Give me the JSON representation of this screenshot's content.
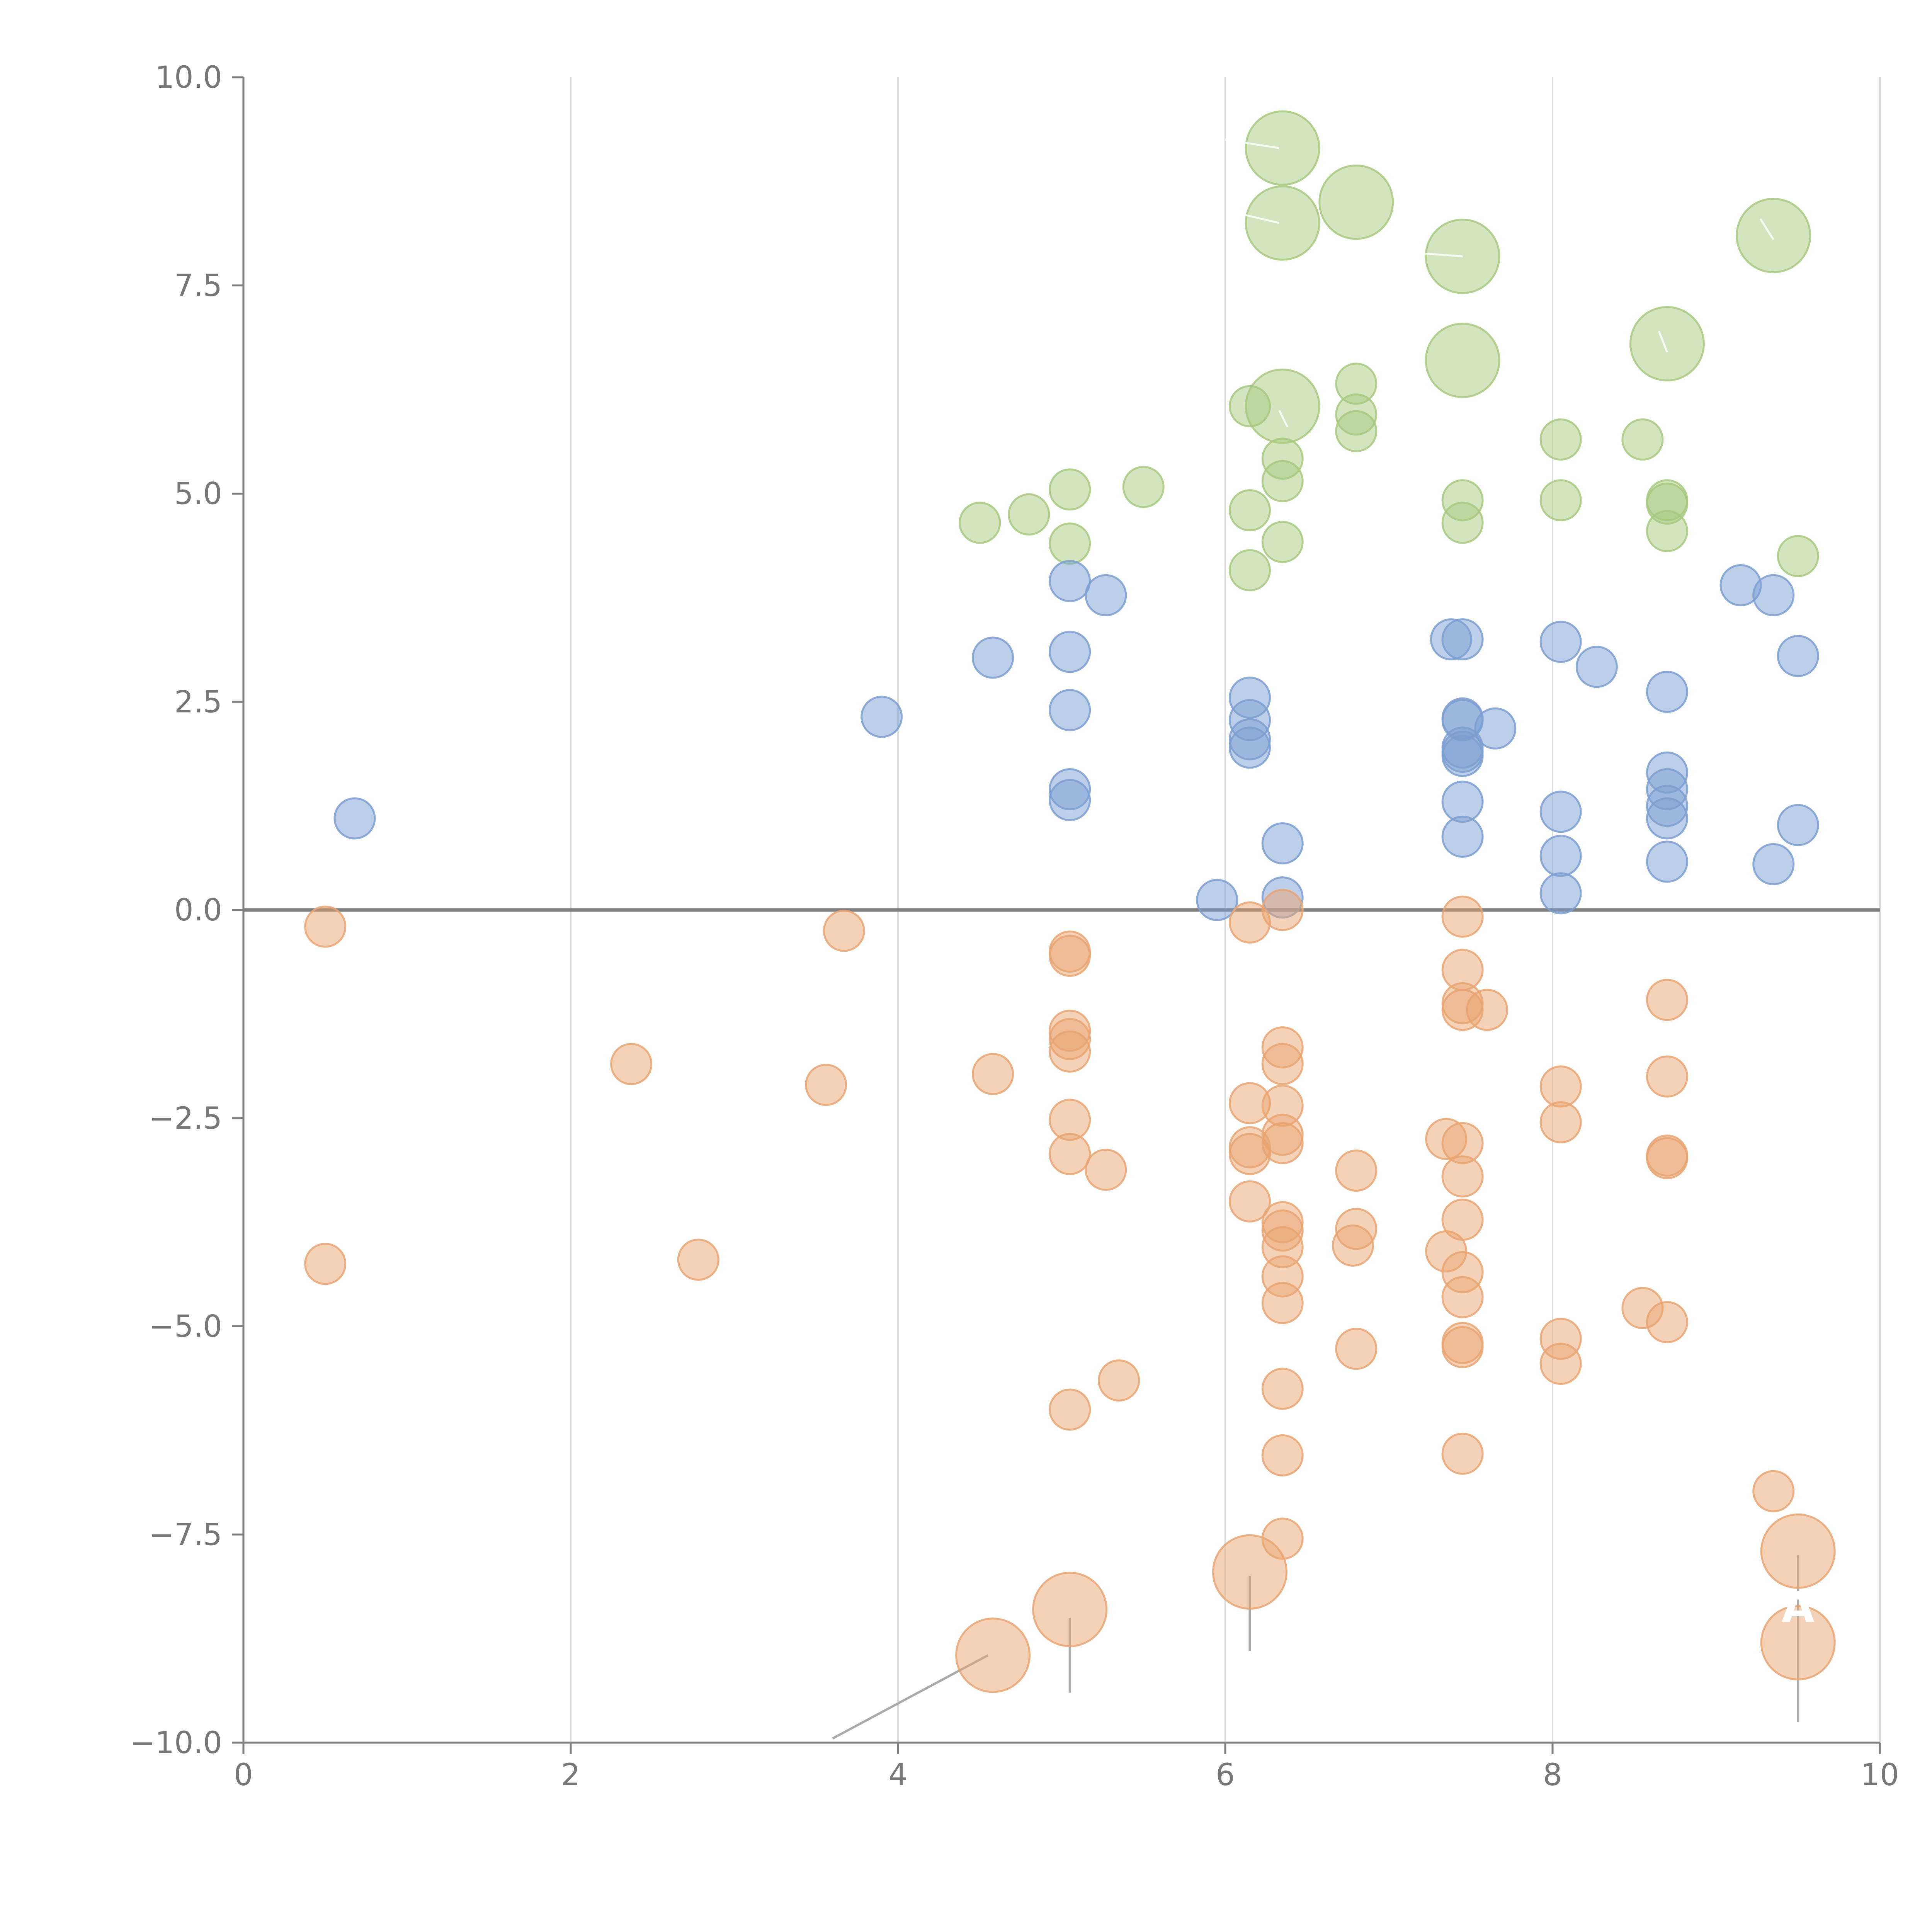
{
  "chart_data": {
    "type": "scatter",
    "title": "",
    "xlabel": "",
    "ylabel": "",
    "xlim": [
      0,
      10
    ],
    "ylim": [
      -10,
      10
    ],
    "x_ticks": [
      0,
      2,
      4,
      6,
      8,
      10
    ],
    "y_ticks": [
      -10,
      -7.5,
      -5,
      -2.5,
      0,
      2.5,
      5,
      7.5,
      10
    ],
    "x_tick_labels": [
      "0",
      "2",
      "4",
      "6",
      "8",
      "10"
    ],
    "y_tick_labels": [
      "−10.0",
      "−7.5",
      "−5.0",
      "−2.5",
      "0.0",
      "2.5",
      "5.0",
      "7.5",
      "10.0"
    ],
    "grid": "vertical",
    "zero_line": true,
    "colors": {
      "green": "#a8c97f",
      "blue": "#7b9fd1",
      "orange": "#e9a572",
      "axis": "#7f7f7f",
      "grid": "#dddddd",
      "leader": "#aaaaaa"
    },
    "series": [
      {
        "color": "green",
        "points": [
          [
            4.5,
            4.65
          ],
          [
            4.8,
            4.75
          ],
          [
            5.05,
            5.05
          ],
          [
            5.05,
            4.4
          ],
          [
            5.5,
            5.08
          ],
          [
            6.15,
            6.05
          ],
          [
            6.15,
            4.8
          ],
          [
            6.15,
            4.08
          ],
          [
            6.35,
            5.42
          ],
          [
            6.35,
            5.15
          ],
          [
            6.35,
            4.42
          ],
          [
            6.8,
            6.32
          ],
          [
            6.8,
            5.95
          ],
          [
            6.8,
            5.75
          ],
          [
            7.45,
            4.92
          ],
          [
            7.45,
            4.65
          ],
          [
            8.05,
            5.65
          ],
          [
            8.05,
            4.92
          ],
          [
            8.55,
            5.65
          ],
          [
            8.7,
            4.92
          ],
          [
            8.7,
            4.88
          ],
          [
            8.7,
            4.55
          ],
          [
            9.5,
            4.25
          ]
        ],
        "big_points": [
          [
            6.35,
            9.15
          ],
          [
            6.35,
            8.25
          ],
          [
            6.8,
            8.5
          ],
          [
            7.45,
            7.85
          ],
          [
            9.35,
            8.1
          ],
          [
            7.45,
            6.6
          ],
          [
            8.7,
            6.8
          ],
          [
            6.35,
            6.05
          ]
        ]
      },
      {
        "color": "blue",
        "points": [
          [
            0.68,
            1.1
          ],
          [
            3.9,
            2.32
          ],
          [
            4.58,
            3.03
          ],
          [
            5.05,
            3.95
          ],
          [
            5.05,
            3.1
          ],
          [
            5.05,
            2.4
          ],
          [
            5.05,
            1.45
          ],
          [
            5.05,
            1.32
          ],
          [
            5.27,
            3.78
          ],
          [
            5.95,
            0.12
          ],
          [
            6.15,
            2.55
          ],
          [
            6.15,
            2.28
          ],
          [
            6.15,
            2.05
          ],
          [
            6.15,
            1.95
          ],
          [
            6.35,
            0.8
          ],
          [
            6.35,
            0.15
          ],
          [
            7.38,
            3.25
          ],
          [
            7.45,
            3.25
          ],
          [
            7.45,
            2.3
          ],
          [
            7.45,
            2.28
          ],
          [
            7.45,
            1.95
          ],
          [
            7.45,
            1.9
          ],
          [
            7.45,
            1.85
          ],
          [
            7.45,
            1.3
          ],
          [
            7.45,
            0.88
          ],
          [
            7.65,
            2.18
          ],
          [
            8.05,
            3.22
          ],
          [
            8.05,
            1.18
          ],
          [
            8.05,
            0.65
          ],
          [
            8.05,
            0.2
          ],
          [
            8.27,
            2.92
          ],
          [
            8.7,
            2.62
          ],
          [
            8.7,
            1.65
          ],
          [
            8.7,
            1.45
          ],
          [
            8.7,
            1.25
          ],
          [
            8.7,
            1.1
          ],
          [
            8.7,
            0.58
          ],
          [
            9.15,
            3.9
          ],
          [
            9.35,
            3.78
          ],
          [
            9.35,
            0.55
          ],
          [
            9.5,
            3.05
          ],
          [
            9.5,
            1.02
          ]
        ],
        "big_points": []
      },
      {
        "color": "orange",
        "points": [
          [
            0.5,
            -0.2
          ],
          [
            0.5,
            -4.25
          ],
          [
            2.37,
            -1.85
          ],
          [
            2.78,
            -4.2
          ],
          [
            3.56,
            -2.1
          ],
          [
            3.67,
            -0.25
          ],
          [
            4.58,
            -1.97
          ],
          [
            5.05,
            -0.5
          ],
          [
            5.05,
            -0.55
          ],
          [
            5.05,
            -1.45
          ],
          [
            5.05,
            -1.55
          ],
          [
            5.05,
            -1.7
          ],
          [
            5.05,
            -2.52
          ],
          [
            5.05,
            -2.93
          ],
          [
            5.05,
            -6.0
          ],
          [
            5.27,
            -3.12
          ],
          [
            5.35,
            -5.65
          ],
          [
            6.15,
            -0.15
          ],
          [
            6.15,
            -2.32
          ],
          [
            6.15,
            -2.85
          ],
          [
            6.15,
            -2.93
          ],
          [
            6.15,
            -3.5
          ],
          [
            6.35,
            0.0
          ],
          [
            6.35,
            -1.65
          ],
          [
            6.35,
            -1.85
          ],
          [
            6.35,
            -2.35
          ],
          [
            6.35,
            -2.7
          ],
          [
            6.35,
            -2.8
          ],
          [
            6.35,
            -3.75
          ],
          [
            6.35,
            -3.85
          ],
          [
            6.35,
            -4.05
          ],
          [
            6.35,
            -4.4
          ],
          [
            6.35,
            -4.72
          ],
          [
            6.35,
            -5.75
          ],
          [
            6.35,
            -6.55
          ],
          [
            6.35,
            -7.55
          ],
          [
            6.78,
            -4.03
          ],
          [
            6.8,
            -3.13
          ],
          [
            6.8,
            -3.83
          ],
          [
            6.8,
            -5.27
          ],
          [
            7.35,
            -2.75
          ],
          [
            7.35,
            -4.1
          ],
          [
            7.45,
            -0.08
          ],
          [
            7.45,
            -0.72
          ],
          [
            7.45,
            -1.12
          ],
          [
            7.45,
            -1.2
          ],
          [
            7.45,
            -2.8
          ],
          [
            7.45,
            -3.2
          ],
          [
            7.45,
            -3.72
          ],
          [
            7.45,
            -4.35
          ],
          [
            7.45,
            -4.65
          ],
          [
            7.45,
            -5.2
          ],
          [
            7.45,
            -5.25
          ],
          [
            7.45,
            -6.53
          ],
          [
            7.6,
            -1.2
          ],
          [
            8.05,
            -2.12
          ],
          [
            8.05,
            -2.55
          ],
          [
            8.05,
            -5.15
          ],
          [
            8.05,
            -5.45
          ],
          [
            8.55,
            -4.78
          ],
          [
            8.7,
            -1.08
          ],
          [
            8.7,
            -2.0
          ],
          [
            8.7,
            -2.95
          ],
          [
            8.7,
            -2.98
          ],
          [
            8.7,
            -4.95
          ],
          [
            9.35,
            -6.98
          ]
        ],
        "big_points": [
          [
            4.58,
            -8.95
          ],
          [
            5.05,
            -8.4
          ],
          [
            6.15,
            -7.95
          ],
          [
            9.5,
            -7.7
          ],
          [
            9.5,
            -8.8
          ]
        ]
      }
    ],
    "annotations": [
      {
        "text": "A",
        "color": "#ffffff",
        "x": 9.5,
        "y": -8.55
      }
    ]
  }
}
